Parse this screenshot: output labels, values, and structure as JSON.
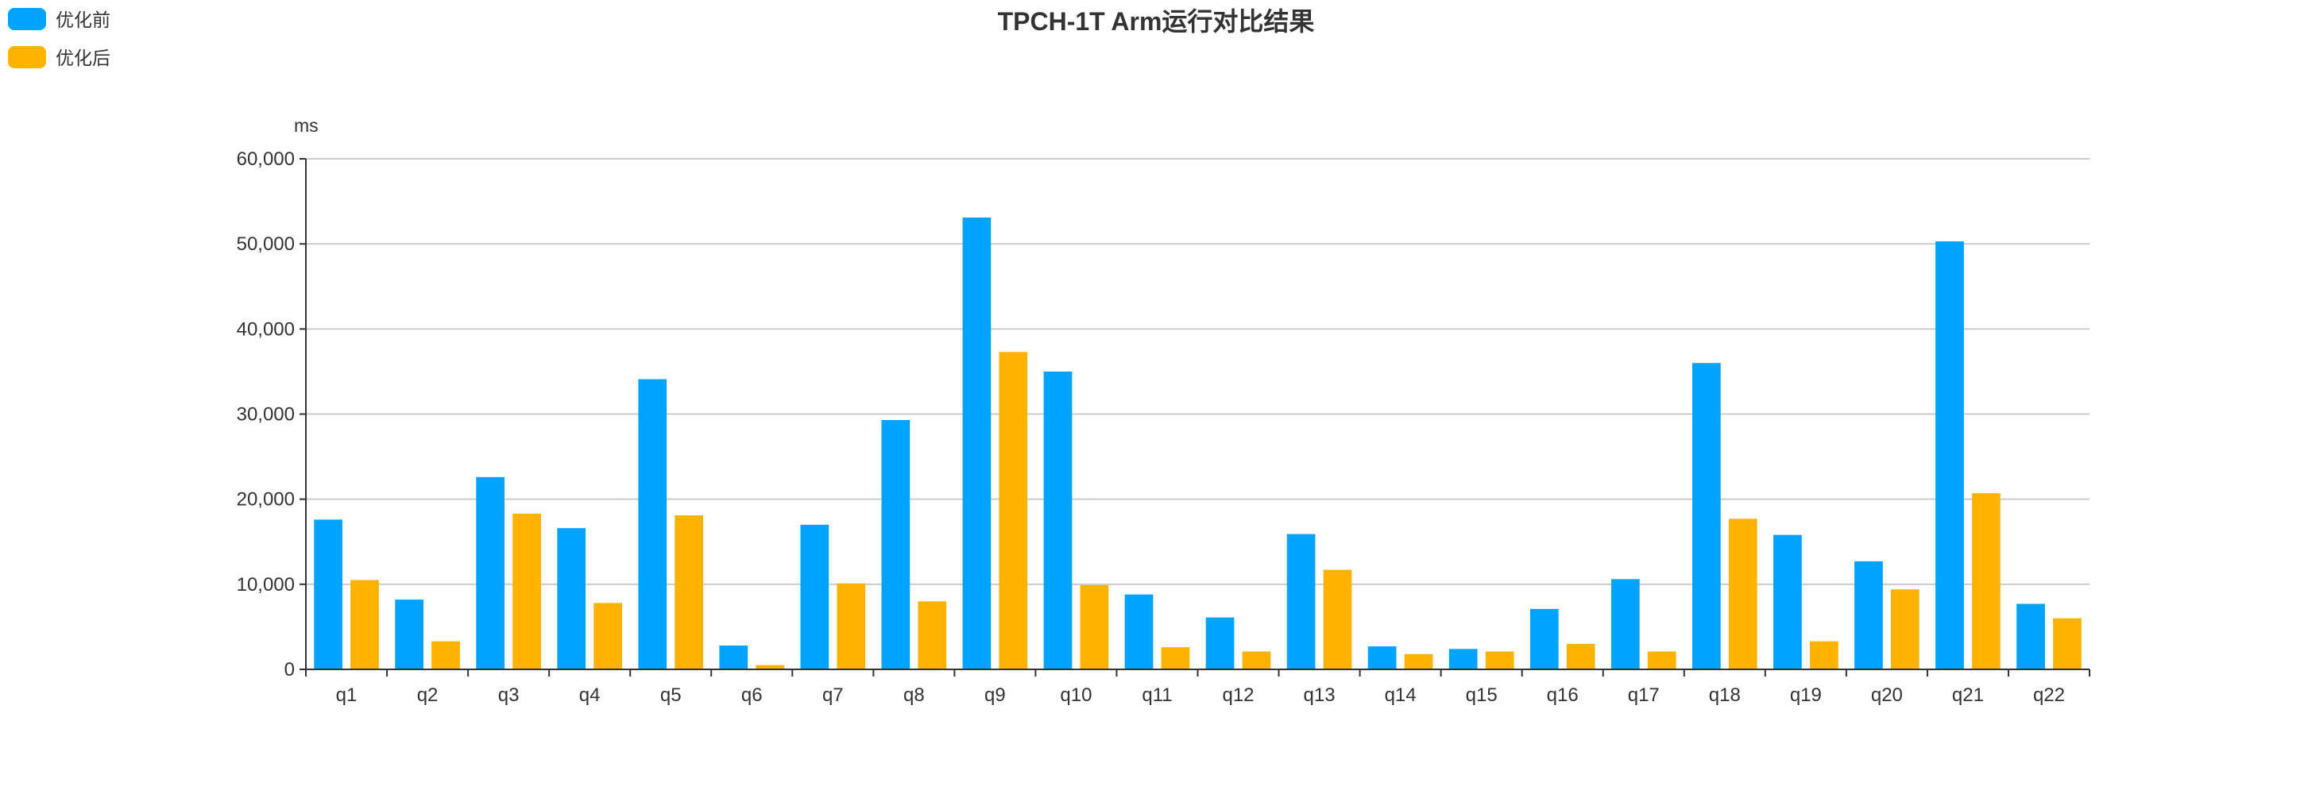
{
  "chart_data": {
    "type": "bar",
    "title": "TPCH-1T Arm运行对比结果",
    "ylabel": "ms",
    "xlabel": "",
    "ylim": [
      0,
      60000
    ],
    "yticks": [
      0,
      10000,
      20000,
      30000,
      40000,
      50000,
      60000
    ],
    "ytick_labels": [
      "0",
      "10,000",
      "20,000",
      "30,000",
      "40,000",
      "50,000",
      "60,000"
    ],
    "grid": true,
    "legend_position": "top-left",
    "categories": [
      "q1",
      "q2",
      "q3",
      "q4",
      "q5",
      "q6",
      "q7",
      "q8",
      "q9",
      "q10",
      "q11",
      "q12",
      "q13",
      "q14",
      "q15",
      "q16",
      "q17",
      "q18",
      "q19",
      "q20",
      "q21",
      "q22"
    ],
    "series": [
      {
        "name": "优化前",
        "color": "#00a3ff",
        "values": [
          17600,
          8200,
          22600,
          16600,
          34100,
          2800,
          17000,
          29300,
          53100,
          35000,
          8800,
          6100,
          15900,
          2700,
          2400,
          7100,
          10600,
          36000,
          15800,
          12700,
          50300,
          7700
        ]
      },
      {
        "name": "优化后",
        "color": "#ffb300",
        "values": [
          10500,
          3300,
          18300,
          7800,
          18100,
          500,
          10100,
          8000,
          37300,
          9900,
          2600,
          2100,
          11700,
          1800,
          2100,
          3000,
          2100,
          17700,
          3300,
          9400,
          20700,
          6000
        ]
      }
    ]
  }
}
